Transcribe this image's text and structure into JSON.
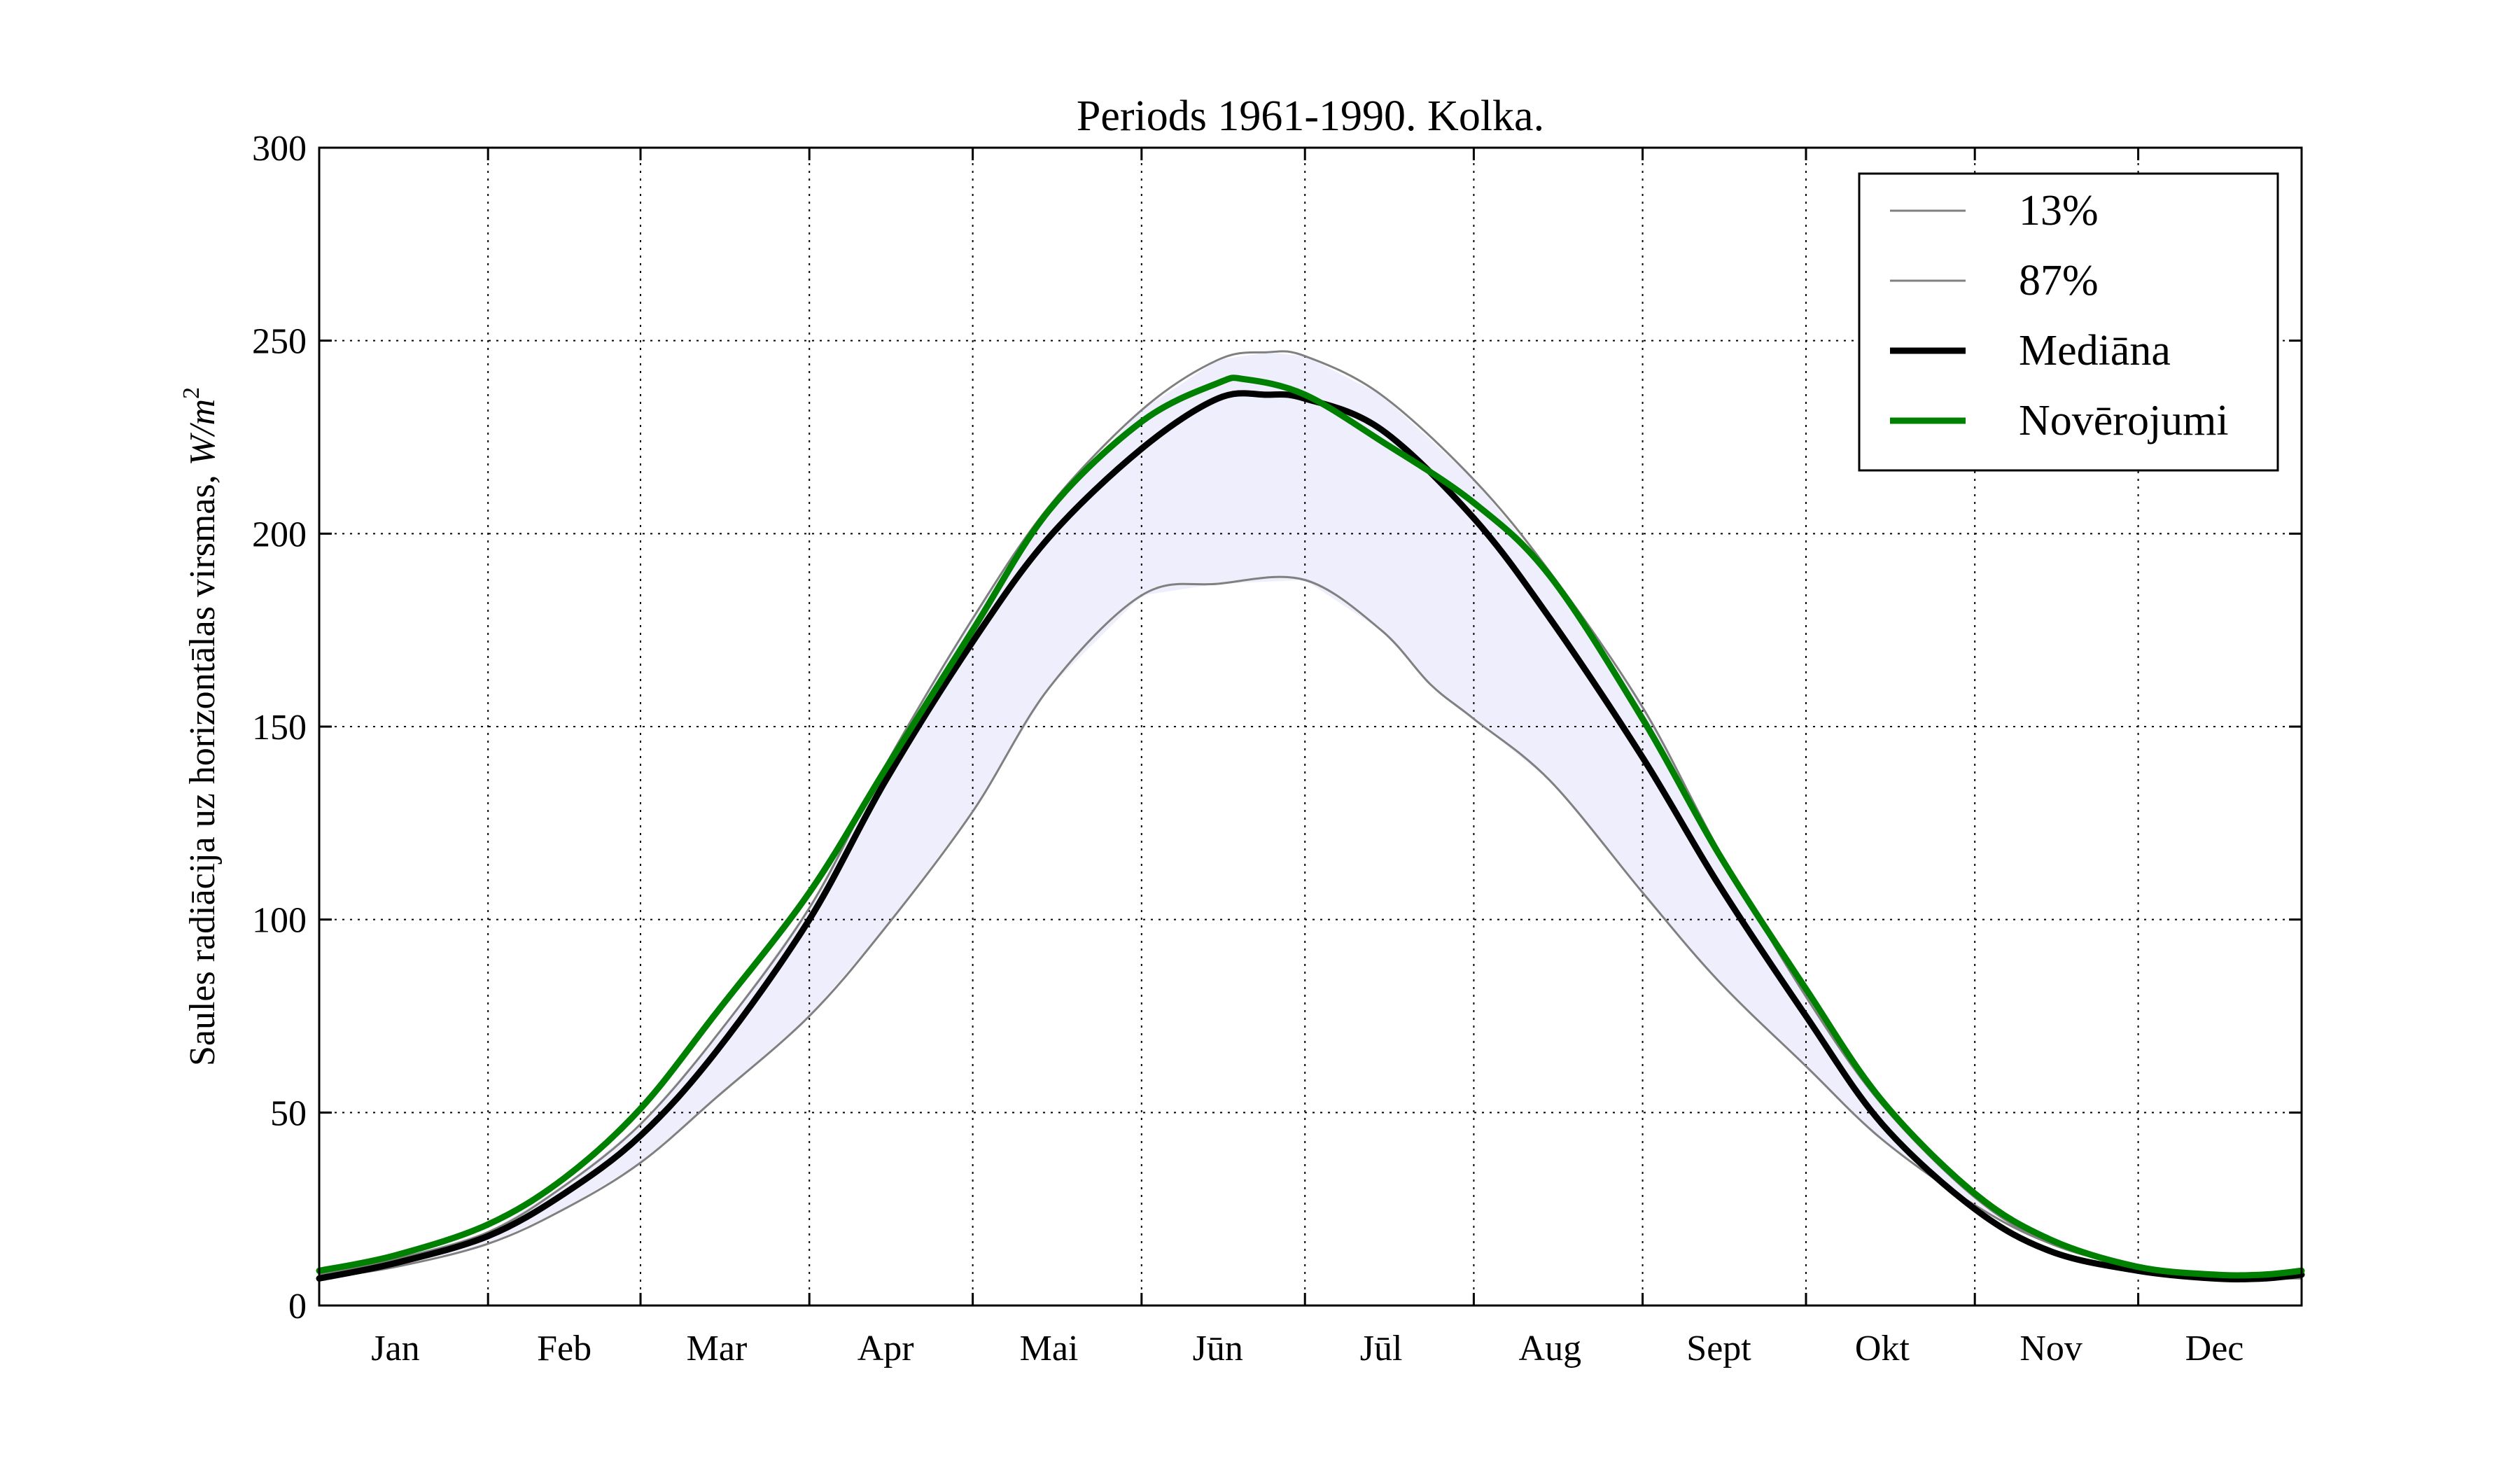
{
  "chart_data": {
    "type": "line",
    "title": "Periods 1961-1990. Kolka.",
    "ylabel_text": "Saules radiācija uz horizontālas virsmas,",
    "ylabel_unit_base": "W/m",
    "ylabel_unit_exp": "2",
    "xlabel": "",
    "ylim": [
      0,
      300
    ],
    "xlim": [
      1,
      365
    ],
    "yticks": [
      0,
      50,
      100,
      150,
      200,
      250,
      300
    ],
    "month_boundaries": [
      32,
      60,
      91,
      121,
      152,
      182,
      213,
      244,
      274,
      305,
      335
    ],
    "month_labels": [
      {
        "label": "Jan",
        "x": 15
      },
      {
        "label": "Feb",
        "x": 46
      },
      {
        "label": "Mar",
        "x": 74
      },
      {
        "label": "Apr",
        "x": 105
      },
      {
        "label": "Mai",
        "x": 135
      },
      {
        "label": "Jūn",
        "x": 166
      },
      {
        "label": "Jūl",
        "x": 196
      },
      {
        "label": "Aug",
        "x": 227
      },
      {
        "label": "Sept",
        "x": 258
      },
      {
        "label": "Okt",
        "x": 288
      },
      {
        "label": "Nov",
        "x": 319
      },
      {
        "label": "Dec",
        "x": 349
      }
    ],
    "grid": true,
    "legend_position": "top-right",
    "fill_between": {
      "lower": "13%",
      "upper": "87%",
      "color": "#eeeefc"
    },
    "series": [
      {
        "name": "13%",
        "color": "#808080",
        "style": "thin",
        "points": [
          [
            1,
            7
          ],
          [
            15,
            10
          ],
          [
            32,
            16
          ],
          [
            46,
            25
          ],
          [
            60,
            37
          ],
          [
            74,
            54
          ],
          [
            91,
            75
          ],
          [
            105,
            98
          ],
          [
            121,
            128
          ],
          [
            135,
            160
          ],
          [
            152,
            184
          ],
          [
            166,
            187
          ],
          [
            182,
            188
          ],
          [
            196,
            175
          ],
          [
            205,
            161
          ],
          [
            213,
            152
          ],
          [
            227,
            136
          ],
          [
            244,
            107
          ],
          [
            258,
            84
          ],
          [
            274,
            62
          ],
          [
            288,
            43
          ],
          [
            305,
            26
          ],
          [
            319,
            16
          ],
          [
            335,
            10
          ],
          [
            349,
            7
          ],
          [
            358,
            7
          ],
          [
            365,
            7
          ]
        ]
      },
      {
        "name": "87%",
        "color": "#808080",
        "style": "thin",
        "points": [
          [
            1,
            8
          ],
          [
            15,
            12
          ],
          [
            32,
            19
          ],
          [
            46,
            31
          ],
          [
            60,
            47
          ],
          [
            74,
            70
          ],
          [
            91,
            103
          ],
          [
            105,
            140
          ],
          [
            121,
            178
          ],
          [
            135,
            207
          ],
          [
            152,
            232
          ],
          [
            166,
            245
          ],
          [
            175,
            247
          ],
          [
            182,
            246
          ],
          [
            196,
            236
          ],
          [
            213,
            214
          ],
          [
            227,
            190
          ],
          [
            244,
            155
          ],
          [
            258,
            118
          ],
          [
            274,
            80
          ],
          [
            288,
            52
          ],
          [
            305,
            28
          ],
          [
            319,
            16
          ],
          [
            335,
            10
          ],
          [
            349,
            8
          ],
          [
            365,
            8
          ]
        ]
      },
      {
        "name": "Mediāna",
        "color": "#000000",
        "style": "thick",
        "points": [
          [
            1,
            7
          ],
          [
            15,
            11
          ],
          [
            32,
            18
          ],
          [
            46,
            29
          ],
          [
            60,
            44
          ],
          [
            74,
            66
          ],
          [
            91,
            100
          ],
          [
            105,
            136
          ],
          [
            121,
            172
          ],
          [
            135,
            199
          ],
          [
            152,
            222
          ],
          [
            166,
            235
          ],
          [
            175,
            236
          ],
          [
            182,
            235
          ],
          [
            196,
            227
          ],
          [
            213,
            204
          ],
          [
            227,
            178
          ],
          [
            244,
            142
          ],
          [
            258,
            109
          ],
          [
            274,
            75
          ],
          [
            288,
            47
          ],
          [
            305,
            25
          ],
          [
            319,
            14
          ],
          [
            335,
            9
          ],
          [
            349,
            7
          ],
          [
            358,
            7
          ],
          [
            365,
            8
          ]
        ]
      },
      {
        "name": "Novērojumi",
        "color": "#008000",
        "style": "thick",
        "points": [
          [
            1,
            9
          ],
          [
            15,
            13
          ],
          [
            32,
            21
          ],
          [
            46,
            33
          ],
          [
            60,
            51
          ],
          [
            74,
            76
          ],
          [
            91,
            107
          ],
          [
            105,
            139
          ],
          [
            121,
            175
          ],
          [
            135,
            206
          ],
          [
            152,
            229
          ],
          [
            166,
            239
          ],
          [
            171,
            240
          ],
          [
            182,
            236
          ],
          [
            196,
            224
          ],
          [
            213,
            208
          ],
          [
            227,
            189
          ],
          [
            244,
            152
          ],
          [
            258,
            117
          ],
          [
            274,
            82
          ],
          [
            288,
            53
          ],
          [
            305,
            29
          ],
          [
            319,
            17
          ],
          [
            335,
            10
          ],
          [
            349,
            8
          ],
          [
            358,
            8
          ],
          [
            365,
            9
          ]
        ]
      }
    ]
  }
}
